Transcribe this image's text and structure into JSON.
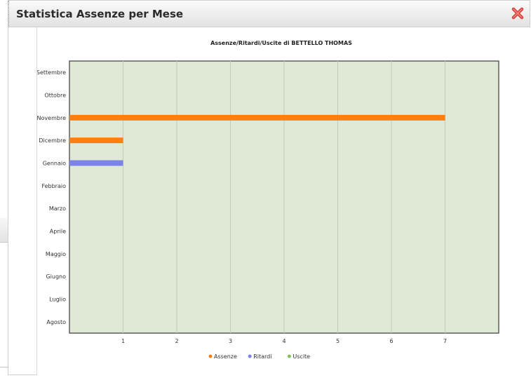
{
  "window": {
    "title": "Statistica Assenze per Mese"
  },
  "colors": {
    "plot_bg": "#e0e8d6",
    "grid": "#c2cdb8",
    "assenze": "#ff7f0e",
    "ritardi": "#7b83ea",
    "uscite": "#7fc35b",
    "close_red": "#d9403a"
  },
  "chart_data": {
    "type": "bar",
    "orientation": "horizontal",
    "title": "Assenze/Ritardi/Uscite di BETTELLO THOMAS",
    "categories": [
      "Settembre",
      "Ottobre",
      "Novembre",
      "Dicembre",
      "Gennaio",
      "Febbraio",
      "Marzo",
      "Aprile",
      "Maggio",
      "Giugno",
      "Luglio",
      "Agosto"
    ],
    "series": [
      {
        "name": "Assenze",
        "values": [
          0,
          0,
          7,
          1,
          0,
          0,
          0,
          0,
          0,
          0,
          0,
          0
        ]
      },
      {
        "name": "Ritardi",
        "values": [
          0,
          0,
          0,
          0,
          1,
          0,
          0,
          0,
          0,
          0,
          0,
          0
        ]
      },
      {
        "name": "Uscite",
        "values": [
          0,
          0,
          0,
          0,
          0,
          0,
          0,
          0,
          0,
          0,
          0,
          0
        ]
      }
    ],
    "x_ticks": [
      1,
      2,
      3,
      4,
      5,
      6,
      7
    ],
    "xlim": [
      0,
      8
    ],
    "grid": true,
    "legend_position": "bottom"
  }
}
